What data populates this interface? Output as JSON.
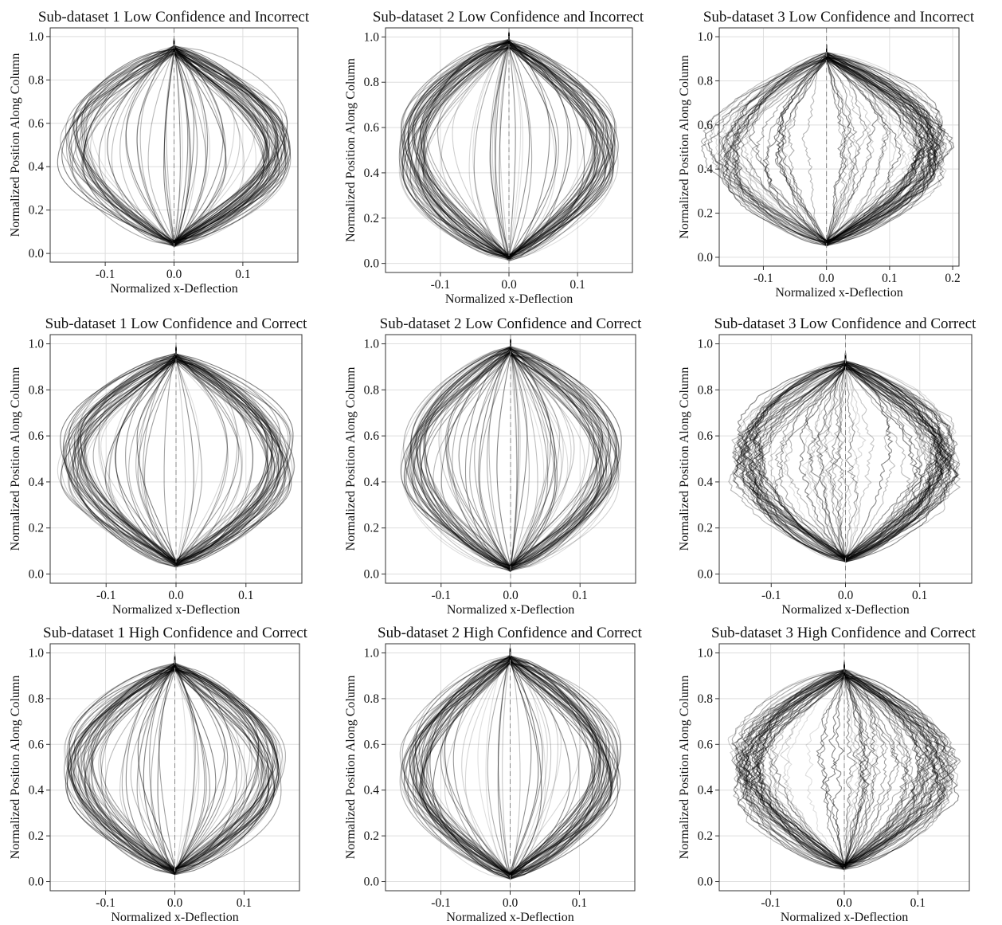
{
  "chart_data": [
    {
      "type": "line",
      "title": "Sub-dataset 1 Low Confidence and Incorrect",
      "xlabel": "Normalized x-Deflection",
      "ylabel": "Normalized Position Along Column",
      "xlim": [
        -0.18,
        0.18
      ],
      "ylim": [
        -0.04,
        1.04
      ],
      "xticks": [
        -0.1,
        0.0,
        0.1
      ],
      "xtick_labels": [
        "-0.1",
        "0.0",
        "0.1"
      ],
      "yticks": [
        0,
        0.2,
        0.4,
        0.6,
        0.8,
        1.0
      ],
      "ytick_labels": [
        "0.0",
        "0.2",
        "0.4",
        "0.6",
        "0.8",
        "1.0"
      ],
      "grid": true,
      "zero_line": true,
      "subdataset": 1,
      "trajectory_summary": {
        "count": 120,
        "max_deflection": 0.17,
        "peak_position": 0.5,
        "y_start": 0.03,
        "y_end": 0.96
      }
    },
    {
      "type": "line",
      "title": "Sub-dataset 2 Low Confidence and Incorrect",
      "xlabel": "Normalized x-Deflection",
      "ylabel": "Normalized Position Along Column",
      "xlim": [
        -0.18,
        0.18
      ],
      "ylim": [
        -0.04,
        1.04
      ],
      "xticks": [
        -0.1,
        0.0,
        0.1
      ],
      "xtick_labels": [
        "-0.1",
        "0.0",
        "0.1"
      ],
      "yticks": [
        0,
        0.2,
        0.4,
        0.6,
        0.8,
        1.0
      ],
      "ytick_labels": [
        "0.0",
        "0.2",
        "0.4",
        "0.6",
        "0.8",
        "1.0"
      ],
      "grid": true,
      "zero_line": true,
      "subdataset": 2,
      "trajectory_summary": {
        "count": 120,
        "max_deflection": 0.16,
        "peak_position": 0.5,
        "y_start": 0.01,
        "y_end": 0.99
      }
    },
    {
      "type": "line",
      "title": "Sub-dataset 3 Low Confidence and Incorrect",
      "xlabel": "Normalized x-Deflection",
      "ylabel": "Normalized Position Along Column",
      "xlim": [
        -0.17,
        0.21
      ],
      "ylim": [
        -0.04,
        1.04
      ],
      "xticks": [
        -0.1,
        0.0,
        0.1,
        0.2
      ],
      "xtick_labels": [
        "-0.1",
        "0.0",
        "0.1",
        "0.2"
      ],
      "yticks": [
        0,
        0.2,
        0.4,
        0.6,
        0.8,
        1.0
      ],
      "ytick_labels": [
        "0.0",
        "0.2",
        "0.4",
        "0.6",
        "0.8",
        "1.0"
      ],
      "grid": true,
      "zero_line": true,
      "subdataset": 3,
      "trajectory_summary": {
        "count": 120,
        "max_deflection": 0.19,
        "peak_position": 0.5,
        "y_start": 0.05,
        "y_end": 0.93
      }
    },
    {
      "type": "line",
      "title": "Sub-dataset 1 Low Confidence and Correct",
      "xlabel": "Normalized x-Deflection",
      "ylabel": "Normalized Position Along Column",
      "xlim": [
        -0.18,
        0.18
      ],
      "ylim": [
        -0.04,
        1.04
      ],
      "xticks": [
        -0.1,
        0.0,
        0.1
      ],
      "xtick_labels": [
        "-0.1",
        "0.0",
        "0.1"
      ],
      "yticks": [
        0,
        0.2,
        0.4,
        0.6,
        0.8,
        1.0
      ],
      "ytick_labels": [
        "0.0",
        "0.2",
        "0.4",
        "0.6",
        "0.8",
        "1.0"
      ],
      "grid": true,
      "zero_line": true,
      "subdataset": 1,
      "trajectory_summary": {
        "count": 120,
        "max_deflection": 0.17,
        "peak_position": 0.5,
        "y_start": 0.03,
        "y_end": 0.96
      }
    },
    {
      "type": "line",
      "title": "Sub-dataset 2 Low Confidence and Correct",
      "xlabel": "Normalized x-Deflection",
      "ylabel": "Normalized Position Along Column",
      "xlim": [
        -0.18,
        0.18
      ],
      "ylim": [
        -0.04,
        1.04
      ],
      "xticks": [
        -0.1,
        0.0,
        0.1
      ],
      "xtick_labels": [
        "-0.1",
        "0.0",
        "0.1"
      ],
      "yticks": [
        0,
        0.2,
        0.4,
        0.6,
        0.8,
        1.0
      ],
      "ytick_labels": [
        "0.0",
        "0.2",
        "0.4",
        "0.6",
        "0.8",
        "1.0"
      ],
      "grid": true,
      "zero_line": true,
      "subdataset": 2,
      "trajectory_summary": {
        "count": 120,
        "max_deflection": 0.16,
        "peak_position": 0.5,
        "y_start": 0.01,
        "y_end": 0.99
      }
    },
    {
      "type": "line",
      "title": "Sub-dataset 3 Low Confidence and Correct",
      "xlabel": "Normalized x-Deflection",
      "ylabel": "Normalized Position Along Column",
      "xlim": [
        -0.17,
        0.17
      ],
      "ylim": [
        -0.04,
        1.04
      ],
      "xticks": [
        -0.1,
        0.0,
        0.1
      ],
      "xtick_labels": [
        "-0.1",
        "0.0",
        "0.1"
      ],
      "yticks": [
        0,
        0.2,
        0.4,
        0.6,
        0.8,
        1.0
      ],
      "ytick_labels": [
        "0.0",
        "0.2",
        "0.4",
        "0.6",
        "0.8",
        "1.0"
      ],
      "grid": true,
      "zero_line": true,
      "subdataset": 3,
      "trajectory_summary": {
        "count": 120,
        "max_deflection": 0.15,
        "peak_position": 0.5,
        "y_start": 0.05,
        "y_end": 0.93
      }
    },
    {
      "type": "line",
      "title": "Sub-dataset 1 High Confidence and Correct",
      "xlabel": "Normalized x-Deflection",
      "ylabel": "Normalized Position Along Column",
      "xlim": [
        -0.18,
        0.18
      ],
      "ylim": [
        -0.04,
        1.04
      ],
      "xticks": [
        -0.1,
        0.0,
        0.1
      ],
      "xtick_labels": [
        "-0.1",
        "0.0",
        "0.1"
      ],
      "yticks": [
        0,
        0.2,
        0.4,
        0.6,
        0.8,
        1.0
      ],
      "ytick_labels": [
        "0.0",
        "0.2",
        "0.4",
        "0.6",
        "0.8",
        "1.0"
      ],
      "grid": true,
      "zero_line": true,
      "subdataset": 1,
      "trajectory_summary": {
        "count": 120,
        "max_deflection": 0.16,
        "peak_position": 0.5,
        "y_start": 0.03,
        "y_end": 0.96
      }
    },
    {
      "type": "line",
      "title": "Sub-dataset 2 High Confidence and Correct",
      "xlabel": "Normalized x-Deflection",
      "ylabel": "Normalized Position Along Column",
      "xlim": [
        -0.18,
        0.18
      ],
      "ylim": [
        -0.04,
        1.04
      ],
      "xticks": [
        -0.1,
        0.0,
        0.1
      ],
      "xtick_labels": [
        "-0.1",
        "0.0",
        "0.1"
      ],
      "yticks": [
        0,
        0.2,
        0.4,
        0.6,
        0.8,
        1.0
      ],
      "ytick_labels": [
        "0.0",
        "0.2",
        "0.4",
        "0.6",
        "0.8",
        "1.0"
      ],
      "grid": true,
      "zero_line": true,
      "subdataset": 2,
      "trajectory_summary": {
        "count": 120,
        "max_deflection": 0.16,
        "peak_position": 0.5,
        "y_start": 0.01,
        "y_end": 0.99
      }
    },
    {
      "type": "line",
      "title": "Sub-dataset 3 High Confidence and Correct",
      "xlabel": "Normalized x-Deflection",
      "ylabel": "Normalized Position Along Column",
      "xlim": [
        -0.17,
        0.17
      ],
      "ylim": [
        -0.04,
        1.04
      ],
      "xticks": [
        -0.1,
        0.0,
        0.1
      ],
      "xtick_labels": [
        "-0.1",
        "0.0",
        "0.1"
      ],
      "yticks": [
        0,
        0.2,
        0.4,
        0.6,
        0.8,
        1.0
      ],
      "ytick_labels": [
        "0.0",
        "0.2",
        "0.4",
        "0.6",
        "0.8",
        "1.0"
      ],
      "grid": true,
      "zero_line": true,
      "subdataset": 3,
      "trajectory_summary": {
        "count": 120,
        "max_deflection": 0.15,
        "peak_position": 0.5,
        "y_start": 0.05,
        "y_end": 0.93
      }
    }
  ]
}
